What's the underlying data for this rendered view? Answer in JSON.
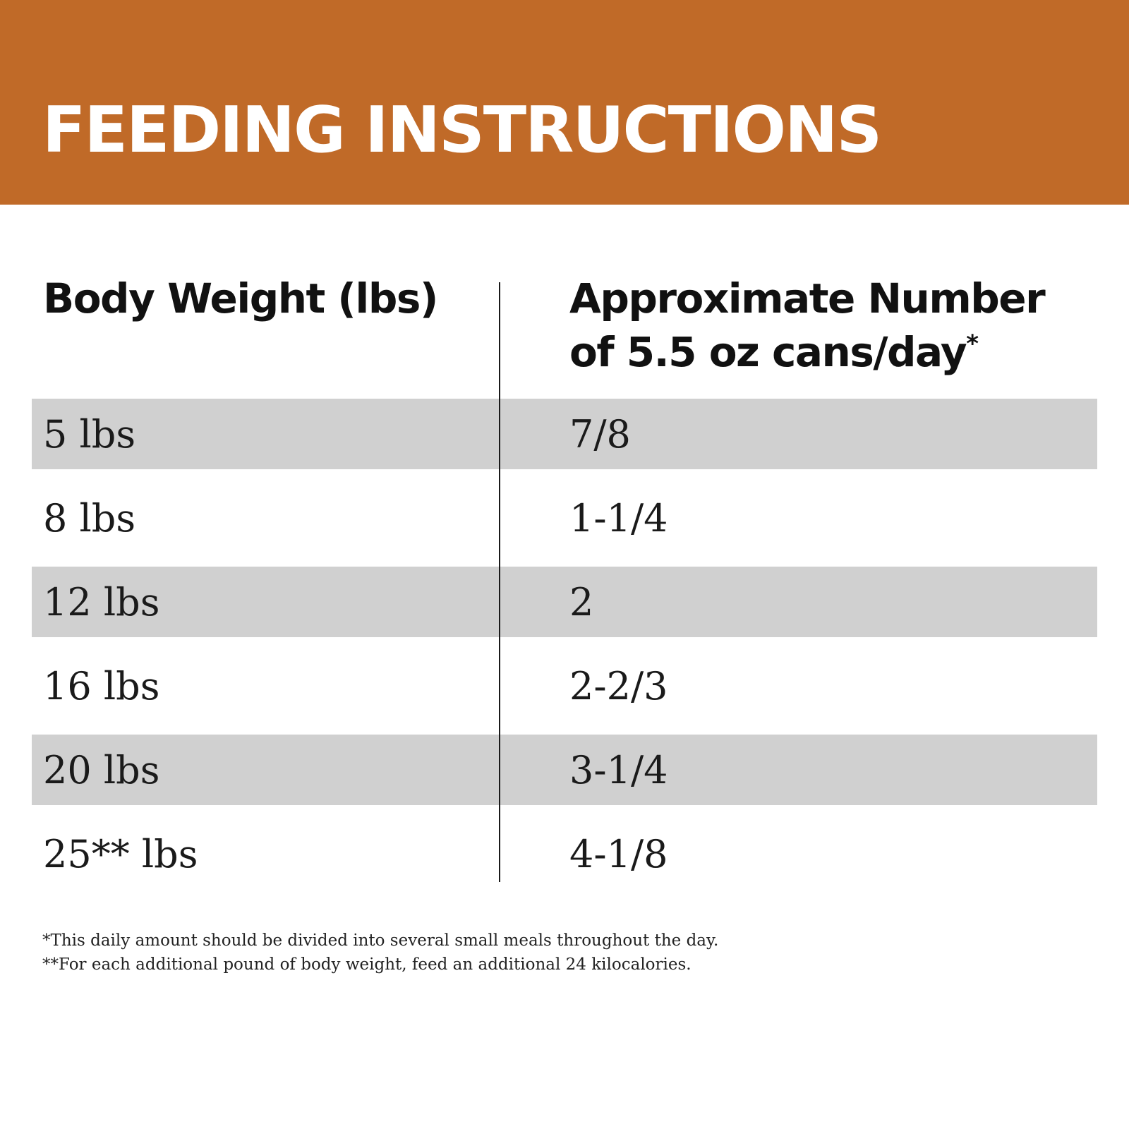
{
  "banner": {
    "title": "FEEDING INSTRUCTIONS",
    "color": "#c06a28"
  },
  "table": {
    "headers": {
      "body_weight": "Body Weight (lbs)",
      "cans_line1": "Approximate Number",
      "cans_line2": "of 5.5 oz cans/day",
      "cans_marker": "*"
    },
    "rows": [
      {
        "weight": "5 lbs",
        "cans": "7/8"
      },
      {
        "weight": "8 lbs",
        "cans": "1-1/4"
      },
      {
        "weight": "12 lbs",
        "cans": "2"
      },
      {
        "weight": "16 lbs",
        "cans": "2-2/3"
      },
      {
        "weight": "20 lbs",
        "cans": "3-1/4"
      },
      {
        "weight": "25** lbs",
        "cans": "4-1/8"
      }
    ],
    "stripe_color": "#d0d0d0"
  },
  "footnotes": [
    "*This daily amount should be divided into several small meals throughout the day.",
    "**For each additional pound of body weight, feed an additional 24 kilocalories."
  ]
}
